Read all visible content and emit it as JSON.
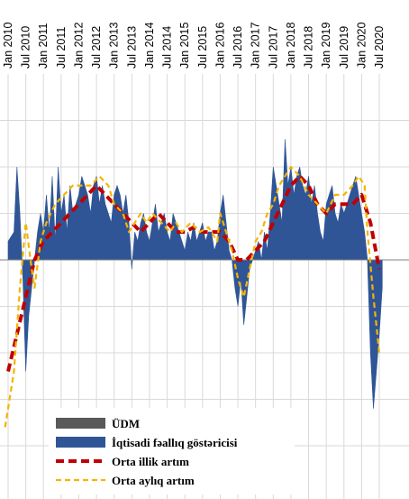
{
  "chart_data": {
    "type": "area",
    "title": "",
    "xlabel": "",
    "ylabel": "",
    "grid": true,
    "y_tick_labels_visible": false,
    "legend_position": "bottom-left",
    "x_ticks": [
      "Jan 2010",
      "Jul 2010",
      "Jan 2011",
      "Jul 2011",
      "Jan 2012",
      "Jul 2012",
      "Jan 2013",
      "Jul 2013",
      "Jan 2014",
      "Jul 2014",
      "Jan 2015",
      "Jul 2015",
      "Jan 2016",
      "Jul 2016",
      "Jan 2017",
      "Jul 2017",
      "Jan 2018",
      "Jul 2018",
      "Jan 2019",
      "Jul 2019",
      "Jan 2020",
      "Jul 2020"
    ],
    "x_range": [
      "2010-01",
      "2020-12"
    ],
    "ylim": [
      -20,
      18
    ],
    "series": [
      {
        "name": "ÜDM",
        "style": "area",
        "color": "#595959",
        "values": []
      },
      {
        "name": "İqtisadi fəallıq göstəricisi",
        "style": "area",
        "color": "#2f5597",
        "points": [
          [
            "2010-01",
            2
          ],
          [
            "2010-03",
            3
          ],
          [
            "2010-04",
            10
          ],
          [
            "2010-05",
            5
          ],
          [
            "2010-06",
            -2
          ],
          [
            "2010-07",
            -12
          ],
          [
            "2010-08",
            -6
          ],
          [
            "2010-10",
            0
          ],
          [
            "2010-11",
            3
          ],
          [
            "2010-12",
            5
          ],
          [
            "2011-01",
            3
          ],
          [
            "2011-02",
            7
          ],
          [
            "2011-03",
            3
          ],
          [
            "2011-04",
            9
          ],
          [
            "2011-05",
            2
          ],
          [
            "2011-06",
            10
          ],
          [
            "2011-07",
            5
          ],
          [
            "2011-08",
            7
          ],
          [
            "2011-09",
            3
          ],
          [
            "2011-10",
            8
          ],
          [
            "2011-11",
            5
          ],
          [
            "2011-12",
            6
          ],
          [
            "2012-01",
            7
          ],
          [
            "2012-02",
            9
          ],
          [
            "2012-03",
            8
          ],
          [
            "2012-04",
            7
          ],
          [
            "2012-05",
            5
          ],
          [
            "2012-06",
            8
          ],
          [
            "2012-07",
            9
          ],
          [
            "2012-08",
            6
          ],
          [
            "2012-09",
            8
          ],
          [
            "2012-10",
            6
          ],
          [
            "2012-11",
            5
          ],
          [
            "2012-12",
            4
          ],
          [
            "2013-01",
            7
          ],
          [
            "2013-02",
            8
          ],
          [
            "2013-03",
            7
          ],
          [
            "2013-04",
            5
          ],
          [
            "2013-05",
            7
          ],
          [
            "2013-06",
            4
          ],
          [
            "2013-07",
            -1
          ],
          [
            "2013-08",
            3
          ],
          [
            "2013-09",
            2
          ],
          [
            "2013-10",
            4
          ],
          [
            "2013-11",
            5
          ],
          [
            "2013-12",
            3
          ],
          [
            "2014-01",
            2
          ],
          [
            "2014-02",
            4
          ],
          [
            "2014-03",
            6
          ],
          [
            "2014-04",
            3
          ],
          [
            "2014-05",
            4
          ],
          [
            "2014-06",
            5
          ],
          [
            "2014-07",
            3
          ],
          [
            "2014-08",
            2
          ],
          [
            "2014-09",
            5
          ],
          [
            "2014-10",
            4
          ],
          [
            "2014-11",
            3
          ],
          [
            "2014-12",
            2
          ],
          [
            "2015-01",
            1
          ],
          [
            "2015-02",
            3
          ],
          [
            "2015-03",
            2
          ],
          [
            "2015-04",
            4
          ],
          [
            "2015-05",
            2
          ],
          [
            "2015-06",
            3
          ],
          [
            "2015-07",
            4
          ],
          [
            "2015-08",
            2
          ],
          [
            "2015-09",
            3
          ],
          [
            "2015-10",
            3
          ],
          [
            "2015-11",
            1
          ],
          [
            "2015-12",
            2
          ],
          [
            "2016-01",
            5
          ],
          [
            "2016-02",
            7
          ],
          [
            "2016-03",
            4
          ],
          [
            "2016-04",
            1
          ],
          [
            "2016-05",
            0
          ],
          [
            "2016-06",
            -3
          ],
          [
            "2016-07",
            -5
          ],
          [
            "2016-08",
            -2
          ],
          [
            "2016-09",
            -7
          ],
          [
            "2016-10",
            -4
          ],
          [
            "2016-11",
            -1
          ],
          [
            "2016-12",
            0
          ],
          [
            "2017-01",
            1
          ],
          [
            "2017-02",
            2
          ],
          [
            "2017-03",
            0
          ],
          [
            "2017-04",
            3
          ],
          [
            "2017-05",
            1
          ],
          [
            "2017-06",
            5
          ],
          [
            "2017-07",
            10
          ],
          [
            "2017-08",
            8
          ],
          [
            "2017-09",
            6
          ],
          [
            "2017-10",
            4
          ],
          [
            "2017-11",
            13
          ],
          [
            "2017-12",
            8
          ],
          [
            "2018-01",
            10
          ],
          [
            "2018-02",
            7
          ],
          [
            "2018-03",
            9
          ],
          [
            "2018-04",
            10
          ],
          [
            "2018-05",
            8
          ],
          [
            "2018-06",
            7
          ],
          [
            "2018-07",
            9
          ],
          [
            "2018-08",
            6
          ],
          [
            "2018-09",
            8
          ],
          [
            "2018-10",
            5
          ],
          [
            "2018-11",
            3
          ],
          [
            "2018-12",
            2
          ],
          [
            "2019-01",
            6
          ],
          [
            "2019-02",
            7
          ],
          [
            "2019-03",
            8
          ],
          [
            "2019-04",
            5
          ],
          [
            "2019-05",
            4
          ],
          [
            "2019-06",
            6
          ],
          [
            "2019-07",
            5
          ],
          [
            "2019-08",
            6
          ],
          [
            "2019-09",
            7
          ],
          [
            "2019-10",
            8
          ],
          [
            "2019-11",
            9
          ],
          [
            "2019-12",
            7
          ],
          [
            "2020-01",
            5
          ],
          [
            "2020-02",
            3
          ],
          [
            "2020-03",
            0
          ],
          [
            "2020-04",
            -10
          ],
          [
            "2020-05",
            -16
          ],
          [
            "2020-06",
            -12
          ],
          [
            "2020-07",
            -8
          ],
          [
            "2020-08",
            -3
          ]
        ]
      },
      {
        "name": "Orta illik artım",
        "style": "dashed-line",
        "color": "#c00000",
        "points": [
          [
            "2010-01",
            -12
          ],
          [
            "2010-04",
            -8
          ],
          [
            "2010-07",
            -4
          ],
          [
            "2010-10",
            0
          ],
          [
            "2011-01",
            2
          ],
          [
            "2011-04",
            3
          ],
          [
            "2011-07",
            4
          ],
          [
            "2011-10",
            5
          ],
          [
            "2012-01",
            6
          ],
          [
            "2012-04",
            7
          ],
          [
            "2012-07",
            8
          ],
          [
            "2012-10",
            7
          ],
          [
            "2013-01",
            6
          ],
          [
            "2013-04",
            5
          ],
          [
            "2013-07",
            4
          ],
          [
            "2013-10",
            3
          ],
          [
            "2014-01",
            4
          ],
          [
            "2014-04",
            5
          ],
          [
            "2014-07",
            4
          ],
          [
            "2014-10",
            3
          ],
          [
            "2015-01",
            3
          ],
          [
            "2015-04",
            3.5
          ],
          [
            "2015-07",
            3
          ],
          [
            "2015-10",
            3
          ],
          [
            "2016-01",
            3
          ],
          [
            "2016-04",
            2
          ],
          [
            "2016-07",
            0
          ],
          [
            "2016-10",
            0
          ],
          [
            "2017-01",
            1
          ],
          [
            "2017-04",
            2
          ],
          [
            "2017-07",
            4
          ],
          [
            "2017-10",
            6
          ],
          [
            "2018-01",
            8
          ],
          [
            "2018-04",
            9
          ],
          [
            "2018-07",
            8
          ],
          [
            "2018-10",
            6
          ],
          [
            "2019-01",
            5
          ],
          [
            "2019-04",
            6
          ],
          [
            "2019-07",
            6
          ],
          [
            "2019-10",
            6
          ],
          [
            "2020-01",
            7
          ],
          [
            "2020-04",
            4
          ],
          [
            "2020-07",
            -1
          ]
        ]
      },
      {
        "name": "Orta aylıq artım",
        "style": "dashed-line",
        "color": "#f4b400",
        "points": [
          [
            "2009-12",
            -18
          ],
          [
            "2010-03",
            -12
          ],
          [
            "2010-05",
            -3
          ],
          [
            "2010-07",
            4
          ],
          [
            "2010-09",
            -1
          ],
          [
            "2010-10",
            -3
          ],
          [
            "2010-12",
            2
          ],
          [
            "2011-02",
            4
          ],
          [
            "2011-05",
            6
          ],
          [
            "2011-08",
            7
          ],
          [
            "2011-11",
            8
          ],
          [
            "2012-02",
            8
          ],
          [
            "2012-05",
            8
          ],
          [
            "2012-08",
            9
          ],
          [
            "2012-11",
            8
          ],
          [
            "2013-01",
            6
          ],
          [
            "2013-04",
            5
          ],
          [
            "2013-06",
            3
          ],
          [
            "2013-08",
            4
          ],
          [
            "2013-10",
            5
          ],
          [
            "2013-12",
            4
          ],
          [
            "2014-02",
            5
          ],
          [
            "2014-05",
            4
          ],
          [
            "2014-08",
            3
          ],
          [
            "2014-10",
            4
          ],
          [
            "2014-12",
            3
          ],
          [
            "2015-03",
            4
          ],
          [
            "2015-06",
            3
          ],
          [
            "2015-09",
            3.5
          ],
          [
            "2015-12",
            2
          ],
          [
            "2016-01",
            5
          ],
          [
            "2016-03",
            3
          ],
          [
            "2016-05",
            1
          ],
          [
            "2016-07",
            -2
          ],
          [
            "2016-09",
            -4
          ],
          [
            "2016-11",
            -1
          ],
          [
            "2017-01",
            2
          ],
          [
            "2017-03",
            3
          ],
          [
            "2017-05",
            5
          ],
          [
            "2017-07",
            6
          ],
          [
            "2017-09",
            8
          ],
          [
            "2017-11",
            9
          ],
          [
            "2018-01",
            10
          ],
          [
            "2018-04",
            9
          ],
          [
            "2018-07",
            7
          ],
          [
            "2018-10",
            6
          ],
          [
            "2019-01",
            5
          ],
          [
            "2019-04",
            7
          ],
          [
            "2019-07",
            7
          ],
          [
            "2019-10",
            8
          ],
          [
            "2019-12",
            9
          ],
          [
            "2020-02",
            8
          ],
          [
            "2020-03",
            3
          ],
          [
            "2020-05",
            -4
          ],
          [
            "2020-07",
            -10
          ]
        ]
      }
    ]
  }
}
